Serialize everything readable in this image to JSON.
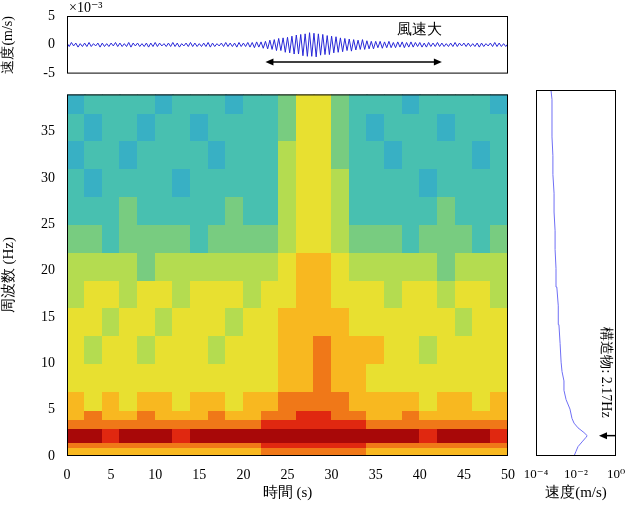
{
  "chart_data": [
    {
      "type": "line",
      "ylabel": "速度(m/s)",
      "y_multiplier": "×10⁻³",
      "color": "#2828d8",
      "grid": false,
      "tick_labels": "y",
      "xlim": [
        0,
        50
      ],
      "ylim": [
        -5,
        5
      ],
      "yticks": [
        -5,
        0,
        5
      ],
      "annotations": [
        {
          "text": "風速大",
          "x_start": 22.5,
          "x_end": 42.5,
          "y": -3
        }
      ],
      "x": [
        0,
        0.25,
        0.5,
        0.75,
        1,
        1.25,
        1.5,
        1.75,
        2,
        2.25,
        2.5,
        2.75,
        3,
        3.25,
        3.5,
        3.75,
        4,
        4.25,
        4.5,
        4.75,
        5,
        5.25,
        5.5,
        5.75,
        6,
        6.25,
        6.5,
        6.75,
        7,
        7.25,
        7.5,
        7.75,
        8,
        8.25,
        8.5,
        8.75,
        9,
        9.25,
        9.5,
        9.75,
        10,
        10.25,
        10.5,
        10.75,
        11,
        11.25,
        11.5,
        11.75,
        12,
        12.25,
        12.5,
        12.75,
        13,
        13.25,
        13.5,
        13.75,
        14,
        14.25,
        14.5,
        14.75,
        15,
        15.25,
        15.5,
        15.75,
        16,
        16.25,
        16.5,
        16.75,
        17,
        17.25,
        17.5,
        17.75,
        18,
        18.25,
        18.5,
        18.75,
        19,
        19.25,
        19.5,
        19.75,
        20,
        20.25,
        20.5,
        20.75,
        21,
        21.25,
        21.5,
        21.75,
        22,
        22.25,
        22.5,
        22.75,
        23,
        23.25,
        23.5,
        23.75,
        24,
        24.25,
        24.5,
        24.75,
        25,
        25.25,
        25.5,
        25.75,
        26,
        26.25,
        26.5,
        26.75,
        27,
        27.25,
        27.5,
        27.75,
        28,
        28.25,
        28.5,
        28.75,
        29,
        29.25,
        29.5,
        29.75,
        30,
        30.25,
        30.5,
        30.75,
        31,
        31.25,
        31.5,
        31.75,
        32,
        32.25,
        32.5,
        32.75,
        33,
        33.25,
        33.5,
        33.75,
        34,
        34.25,
        34.5,
        34.75,
        35,
        35.25,
        35.5,
        35.75,
        36,
        36.25,
        36.5,
        36.75,
        37,
        37.25,
        37.5,
        37.75,
        38,
        38.25,
        38.5,
        38.75,
        39,
        39.25,
        39.5,
        39.75,
        40,
        40.25,
        40.5,
        40.75,
        41,
        41.25,
        41.5,
        41.75,
        42,
        42.25,
        42.5,
        42.75,
        43,
        43.25,
        43.5,
        43.75,
        44,
        44.25,
        44.5,
        44.75,
        45,
        45.25,
        45.5,
        45.75,
        46,
        46.25,
        46.5,
        46.75,
        47,
        47.25,
        47.5,
        47.75,
        48,
        48.25,
        48.5,
        48.75,
        49,
        49.25,
        49.5,
        49.75,
        50
      ],
      "values": [
        0.3,
        -0.3,
        0.4,
        -0.2,
        0.3,
        -0.4,
        0.2,
        -0.3,
        0.3,
        -0.3,
        0.4,
        -0.3,
        0.2,
        -0.2,
        0.3,
        -0.4,
        0.3,
        -0.3,
        0.2,
        -0.3,
        0.3,
        -0.2,
        0.4,
        -0.3,
        0.3,
        -0.3,
        0.2,
        -0.3,
        0.4,
        -0.4,
        0.3,
        -0.2,
        0.3,
        -0.3,
        0.2,
        -0.3,
        0.3,
        -0.4,
        0.3,
        -0.3,
        0.4,
        -0.3,
        0.3,
        -0.2,
        0.2,
        -0.3,
        0.3,
        -0.3,
        0.4,
        -0.3,
        0.3,
        -0.4,
        0.2,
        -0.2,
        0.3,
        -0.3,
        0.4,
        -0.3,
        0.3,
        -0.3,
        0.2,
        -0.3,
        0.3,
        -0.3,
        0.4,
        -0.4,
        0.3,
        -0.3,
        0.2,
        -0.2,
        0.3,
        -0.3,
        0.4,
        -0.3,
        0.3,
        -0.3,
        0.3,
        -0.4,
        0.4,
        -0.3,
        0.3,
        -0.3,
        0.4,
        -0.4,
        0.4,
        -0.5,
        0.5,
        -0.4,
        0.5,
        -0.6,
        0.6,
        -0.7,
        0.8,
        -0.8,
        0.9,
        -1.0,
        1.1,
        -1.0,
        1.2,
        -1.3,
        1.3,
        -1.4,
        1.5,
        -1.6,
        1.7,
        -1.6,
        1.8,
        -1.9,
        1.9,
        -2.0,
        2.1,
        -2.0,
        2.0,
        -2.1,
        1.9,
        -1.8,
        1.8,
        -1.7,
        1.6,
        -1.7,
        1.5,
        -1.4,
        1.4,
        -1.3,
        1.2,
        -1.2,
        1.1,
        -1.0,
        1.0,
        -1.1,
        0.9,
        -0.9,
        0.8,
        -0.8,
        0.9,
        -0.8,
        0.7,
        -0.7,
        0.6,
        -0.7,
        0.6,
        -0.5,
        0.6,
        -0.6,
        0.5,
        -0.5,
        0.6,
        -0.5,
        0.4,
        -0.5,
        0.5,
        -0.4,
        0.5,
        -0.5,
        0.4,
        -0.4,
        0.5,
        -0.4,
        0.4,
        -0.3,
        0.4,
        -0.4,
        0.3,
        -0.4,
        0.4,
        -0.3,
        0.3,
        -0.3,
        0.4,
        -0.3,
        0.3,
        -0.3,
        0.2,
        -0.3,
        0.3,
        -0.3,
        0.4,
        -0.3,
        0.3,
        -0.2,
        0.3,
        -0.3,
        0.3,
        -0.3,
        0.2,
        -0.3,
        0.3,
        -0.4,
        0.3,
        -0.3,
        0.2,
        -0.2,
        0.3,
        -0.3,
        0.4,
        -0.3,
        0.3,
        -0.3,
        0.2,
        -0.3,
        0.2
      ]
    },
    {
      "type": "heatmap",
      "xlabel": "時間 (s)",
      "ylabel": "周波数 (Hz)",
      "grid": false,
      "xlim": [
        0,
        50
      ],
      "ylim": [
        0,
        39
      ],
      "xticks": [
        0,
        5,
        10,
        15,
        20,
        25,
        30,
        35,
        40,
        45,
        50
      ],
      "yticks": [
        0,
        5,
        10,
        15,
        20,
        25,
        30,
        35
      ],
      "zlim": [
        0,
        10
      ],
      "x_bins": [
        0,
        2,
        4,
        6,
        8,
        10,
        12,
        14,
        16,
        18,
        20,
        22,
        24,
        26,
        28,
        30,
        32,
        34,
        36,
        38,
        40,
        42,
        44,
        46,
        48,
        50
      ],
      "y_bins": [
        0,
        1,
        1.5,
        3,
        4,
        5,
        7,
        10,
        13,
        16,
        19,
        22,
        25,
        28,
        31,
        34,
        37,
        39
      ],
      "cells": [
        [
          7,
          7,
          7,
          7,
          7,
          7,
          7,
          7,
          7,
          7,
          7,
          8,
          8,
          8,
          8,
          8,
          8,
          7,
          7,
          7,
          7,
          7,
          7,
          7,
          7
        ],
        [
          8,
          8,
          8,
          8,
          8,
          8,
          8,
          8,
          8,
          8,
          8,
          9,
          9,
          9,
          9,
          9,
          9,
          8,
          8,
          8,
          8,
          8,
          8,
          8,
          8
        ],
        [
          10,
          10,
          9,
          10,
          10,
          10,
          9,
          10,
          10,
          10,
          10,
          10,
          10,
          10,
          10,
          10,
          10,
          10,
          10,
          10,
          9,
          10,
          10,
          10,
          9
        ],
        [
          8,
          8,
          8,
          8,
          8,
          8,
          8,
          8,
          8,
          8,
          8,
          9,
          9,
          9,
          9,
          9,
          9,
          8,
          8,
          8,
          8,
          8,
          8,
          8,
          8
        ],
        [
          7,
          8,
          7,
          7,
          8,
          7,
          7,
          7,
          8,
          7,
          7,
          8,
          8,
          9,
          9,
          8,
          8,
          7,
          7,
          8,
          7,
          7,
          7,
          7,
          7
        ],
        [
          7,
          6,
          7,
          6,
          7,
          7,
          6,
          7,
          7,
          6,
          7,
          7,
          8,
          8,
          8,
          8,
          7,
          7,
          7,
          7,
          6,
          7,
          7,
          6,
          7
        ],
        [
          6,
          6,
          6,
          6,
          6,
          6,
          6,
          6,
          6,
          6,
          6,
          6,
          7,
          7,
          8,
          7,
          7,
          6,
          6,
          6,
          6,
          6,
          6,
          6,
          6
        ],
        [
          6,
          5,
          6,
          6,
          5,
          6,
          6,
          6,
          5,
          6,
          6,
          6,
          7,
          7,
          8,
          7,
          7,
          7,
          6,
          6,
          5,
          6,
          6,
          6,
          6
        ],
        [
          6,
          6,
          5,
          6,
          6,
          5,
          6,
          6,
          6,
          5,
          6,
          6,
          7,
          7,
          7,
          7,
          6,
          6,
          6,
          6,
          6,
          6,
          5,
          6,
          6
        ],
        [
          5,
          6,
          6,
          5,
          6,
          6,
          5,
          6,
          6,
          6,
          5,
          6,
          6,
          7,
          7,
          6,
          6,
          6,
          5,
          6,
          6,
          5,
          6,
          6,
          5
        ],
        [
          5,
          5,
          5,
          5,
          4,
          5,
          5,
          5,
          5,
          5,
          5,
          5,
          6,
          7,
          7,
          6,
          5,
          5,
          5,
          5,
          5,
          4,
          5,
          5,
          5
        ],
        [
          4,
          4,
          3,
          4,
          4,
          4,
          4,
          3,
          4,
          4,
          4,
          4,
          5,
          6,
          6,
          5,
          4,
          4,
          4,
          3,
          4,
          4,
          4,
          3,
          4
        ],
        [
          3,
          3,
          3,
          4,
          3,
          3,
          3,
          3,
          3,
          4,
          3,
          3,
          5,
          6,
          6,
          5,
          3,
          3,
          3,
          3,
          3,
          4,
          3,
          3,
          3
        ],
        [
          3,
          2,
          3,
          3,
          3,
          3,
          2,
          3,
          3,
          3,
          3,
          3,
          5,
          6,
          6,
          5,
          3,
          3,
          3,
          3,
          2,
          3,
          3,
          3,
          3
        ],
        [
          2,
          3,
          3,
          2,
          3,
          3,
          3,
          3,
          2,
          3,
          3,
          3,
          5,
          6,
          6,
          4,
          3,
          3,
          2,
          3,
          3,
          3,
          3,
          2,
          3
        ],
        [
          3,
          2,
          3,
          3,
          2,
          3,
          3,
          2,
          3,
          3,
          3,
          3,
          4,
          6,
          6,
          4,
          3,
          2,
          3,
          3,
          3,
          2,
          3,
          3,
          3
        ],
        [
          2,
          3,
          3,
          3,
          3,
          2,
          3,
          3,
          3,
          2,
          3,
          3,
          4,
          6,
          6,
          4,
          3,
          3,
          3,
          2,
          3,
          3,
          3,
          3,
          2
        ]
      ]
    },
    {
      "type": "line",
      "xlabel": "速度(m/s)",
      "log": "x",
      "color": "#6f6ff5",
      "grid": false,
      "tick_labels": "x",
      "xlim": [
        0.0001,
        1
      ],
      "ylim": [
        0,
        39
      ],
      "xticks": [
        {
          "value": 0.0001,
          "label": "10⁻⁴"
        },
        {
          "value": 0.01,
          "label": "10⁻²"
        },
        {
          "value": 1,
          "label": "10⁰"
        }
      ],
      "annotations": [
        {
          "text": "構造物: 2.17Hz",
          "y": 2.17
        }
      ],
      "x": [
        0.008,
        0.01,
        0.0126,
        0.02,
        0.032,
        0.036,
        0.025,
        0.0126,
        0.008,
        0.0063,
        0.005,
        0.0032,
        0.0025,
        0.0025,
        0.002,
        0.0018,
        0.0016,
        0.0014,
        0.0013,
        0.0011,
        0.001,
        0.0009,
        0.0009,
        0.0008,
        0.0008,
        0.0007,
        0.0007,
        0.00063,
        0.00063,
        0.00063,
        0.00056
      ],
      "y": [
        0,
        0.5,
        1,
        1.5,
        2,
        2.17,
        2.5,
        3,
        3.5,
        4,
        5,
        6,
        7,
        8,
        9,
        10,
        12,
        14,
        16,
        18,
        20,
        22,
        24,
        26,
        28,
        30,
        32,
        34,
        36,
        38,
        39
      ]
    }
  ]
}
